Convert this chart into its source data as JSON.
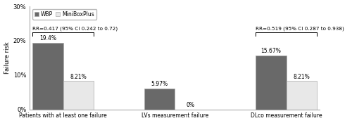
{
  "groups": [
    "Patients with at least one failure",
    "LVs measurement failure",
    "DLco measurement failure"
  ],
  "wbp_values": [
    19.4,
    5.97,
    15.67
  ],
  "mini_values": [
    8.21,
    0.0,
    8.21
  ],
  "wbp_labels": [
    "19.4%",
    "5.97%",
    "15.67%"
  ],
  "mini_labels": [
    "8.21%",
    "0%",
    "8.21%"
  ],
  "wbp_color": "#696969",
  "mini_color": "#e8e8e8",
  "ylabel": "Failure risk",
  "ylim": [
    0,
    30
  ],
  "yticks": [
    0,
    10,
    20,
    30
  ],
  "ytick_labels": [
    "0%",
    "10%",
    "20%",
    "30%"
  ],
  "legend_wbp": "WBP",
  "legend_mini": "MiniBoxPlus",
  "rr1_text": "RR=0.417 (95% CI 0.242 to 0.72)",
  "rr2_text": "RR=0.519 (95% CI 0.287 to 0.938)",
  "bar_width": 0.55,
  "group_positions": [
    0.5,
    2.5,
    4.5
  ]
}
